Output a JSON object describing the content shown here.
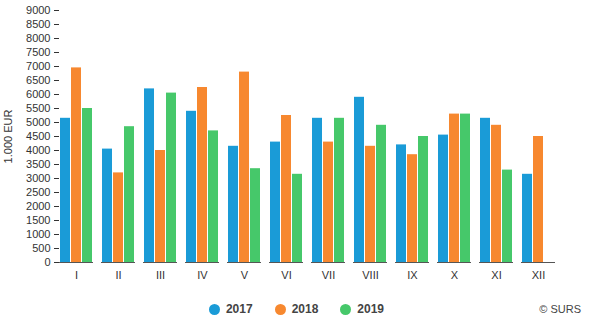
{
  "chart_data": {
    "type": "bar",
    "y_label": "1.000 EUR",
    "annotations": [
      "© SURS"
    ],
    "categories": [
      "I",
      "II",
      "III",
      "IV",
      "V",
      "VI",
      "VII",
      "VIII",
      "IX",
      "X",
      "XI",
      "XII"
    ],
    "series": [
      {
        "name": "2017",
        "color": "#1a9bd7",
        "values": [
          5150,
          4050,
          6200,
          5400,
          4150,
          4300,
          5150,
          5900,
          4200,
          4550,
          5150,
          3150
        ]
      },
      {
        "name": "2018",
        "color": "#f7882f",
        "values": [
          6950,
          3200,
          4000,
          6250,
          6800,
          5250,
          4300,
          4150,
          3850,
          5300,
          4900,
          4500
        ]
      },
      {
        "name": "2019",
        "color": "#46c86a",
        "values": [
          5500,
          4850,
          6050,
          4700,
          3350,
          3150,
          5150,
          4900,
          4500,
          5300,
          3300,
          null
        ]
      }
    ],
    "ylim": [
      0,
      9000
    ],
    "yticks": [
      0,
      500,
      1000,
      1500,
      2000,
      2500,
      3000,
      3500,
      4000,
      4500,
      5000,
      5500,
      6000,
      6500,
      7000,
      7500,
      8000,
      8500,
      9000
    ],
    "grid": false,
    "legend": "bottom"
  }
}
